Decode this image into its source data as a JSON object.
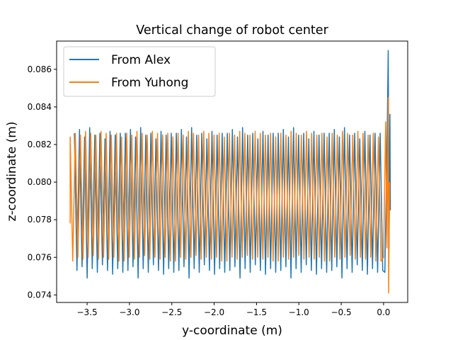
{
  "chart_data": {
    "type": "line",
    "title": "Vertical change of robot center",
    "xlabel": "y-coordinate (m)",
    "ylabel": "z-coordinate (m)",
    "xlim": [
      -3.86,
      0.285
    ],
    "ylim": [
      0.0736,
      0.0875
    ],
    "x_ticks": [
      -3.5,
      -3.0,
      -2.5,
      -2.0,
      -1.5,
      -1.0,
      -0.5,
      0.0
    ],
    "x_tick_labels": [
      "−3.5",
      "−3.0",
      "−2.5",
      "−2.0",
      "−1.5",
      "−1.0",
      "−0.5",
      "0.0"
    ],
    "y_ticks": [
      0.074,
      0.076,
      0.078,
      0.08,
      0.082,
      0.084,
      0.086
    ],
    "y_tick_labels": [
      "0.074",
      "0.076",
      "0.078",
      "0.080",
      "0.082",
      "0.084",
      "0.086"
    ],
    "grid": false,
    "legend_position": "top-left",
    "series": [
      {
        "name": "From Alex",
        "color": "#1f77b4",
        "oscillation": {
          "y_start": -3.65,
          "y_end": 0.02,
          "cycles": 61,
          "z_center": 0.079,
          "z_amplitude": 0.0034,
          "peaks": [
            0.0826,
            0.0828,
            0.0824,
            0.0829,
            0.0825,
            0.0826,
            0.0823,
            0.0827,
            0.0825,
            0.0826
          ],
          "troughs": [
            0.0753,
            0.0755,
            0.0749,
            0.0754,
            0.0752,
            0.0756,
            0.0753,
            0.0751,
            0.0754,
            0.0752
          ]
        },
        "end_points": [
          {
            "y": 0.015,
            "z": 0.0752
          },
          {
            "y": 0.04,
            "z": 0.0815
          },
          {
            "y": 0.055,
            "z": 0.087
          },
          {
            "y": 0.065,
            "z": 0.0765
          },
          {
            "y": 0.075,
            "z": 0.0836
          },
          {
            "y": 0.08,
            "z": 0.0785
          }
        ]
      },
      {
        "name": "From Yuhong",
        "color": "#ff7f0e",
        "oscillation": {
          "y_start": -3.7,
          "y_end": 0.0,
          "cycles": 61,
          "z_center": 0.0792,
          "z_amplitude": 0.0033,
          "peaks": [
            0.0824,
            0.0826,
            0.0825,
            0.0827,
            0.0826,
            0.0825,
            0.0827,
            0.0826,
            0.0825,
            0.0826
          ],
          "troughs": [
            0.0758,
            0.076,
            0.0759,
            0.076,
            0.0761,
            0.0759,
            0.076,
            0.0759,
            0.076,
            0.0758
          ]
        },
        "start_point": {
          "y": -3.7,
          "z": 0.0778
        },
        "end_points": [
          {
            "y": 0.0,
            "z": 0.076
          },
          {
            "y": 0.025,
            "z": 0.0832
          },
          {
            "y": 0.04,
            "z": 0.0765
          },
          {
            "y": 0.055,
            "z": 0.0845
          },
          {
            "y": 0.06,
            "z": 0.0741
          },
          {
            "y": 0.07,
            "z": 0.08
          }
        ]
      }
    ]
  }
}
